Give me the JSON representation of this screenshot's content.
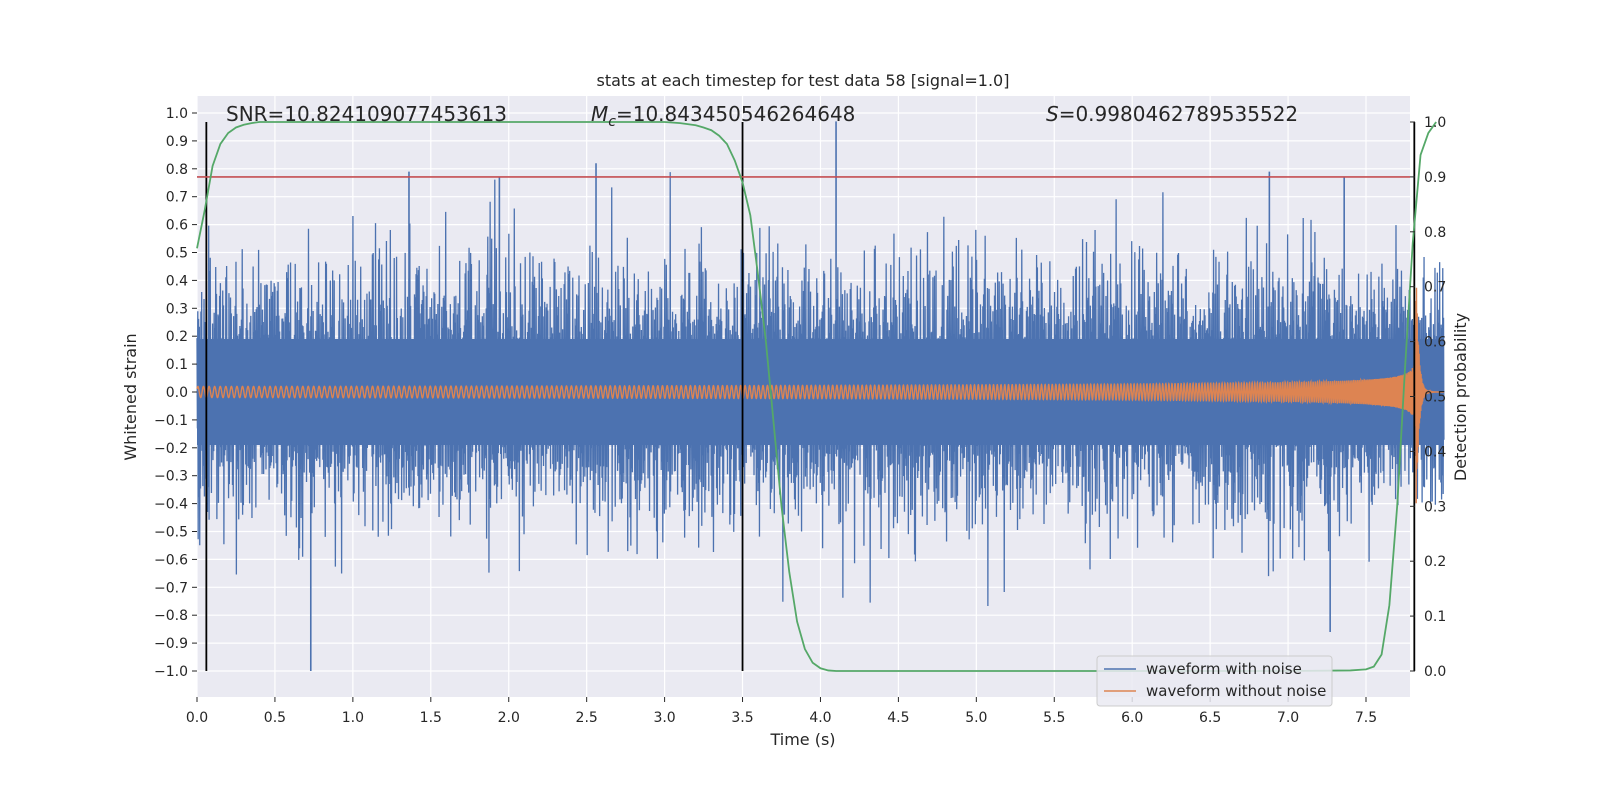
{
  "chart_data": {
    "type": "line",
    "title": "stats at each timestep for test data 58 [signal=1.0]",
    "xlabel": "Time (s)",
    "ylabel": "Whitened strain",
    "y2label": "Detection probability",
    "xlim": [
      0.0,
      8.0
    ],
    "ylim": [
      -1.1,
      1.05
    ],
    "y2lim": [
      -0.0477,
      1.0455
    ],
    "xticks": [
      0.0,
      0.5,
      1.0,
      1.5,
      2.0,
      2.5,
      3.0,
      3.5,
      4.0,
      4.5,
      5.0,
      5.5,
      6.0,
      6.5,
      7.0,
      7.5
    ],
    "xtick_labels": [
      "0.0",
      "0.5",
      "1.0",
      "1.5",
      "2.0",
      "2.5",
      "3.0",
      "3.5",
      "4.0",
      "4.5",
      "5.0",
      "5.5",
      "6.0",
      "6.5",
      "7.0",
      "7.5"
    ],
    "yticks": [
      1.0,
      0.9,
      0.8,
      0.7,
      0.6,
      0.5,
      0.4,
      0.3,
      0.2,
      0.1,
      0.0,
      -0.1,
      -0.2,
      -0.3,
      -0.4,
      -0.5,
      -0.6,
      -0.7,
      -0.8,
      -0.9,
      -1.0
    ],
    "ytick_labels": [
      "1.0",
      "0.9",
      "0.8",
      "0.7",
      "0.6",
      "0.5",
      "0.4",
      "0.3",
      "0.2",
      "0.1",
      "0.0",
      "−0.1",
      "−0.2",
      "−0.3",
      "−0.4",
      "−0.5",
      "−0.6",
      "−0.7",
      "−0.8",
      "−0.9",
      "−1.0"
    ],
    "y2ticks": [
      1.0,
      0.9,
      0.8,
      0.7,
      0.6,
      0.5,
      0.4,
      0.3,
      0.2,
      0.1,
      0.0
    ],
    "y2tick_labels": [
      "1.0",
      "0.9",
      "0.8",
      "0.7",
      "0.6",
      "0.5",
      "0.4",
      "0.3",
      "0.2",
      "0.1",
      "0.0"
    ],
    "grid": true,
    "legend_position": "bottom-right",
    "annotations": {
      "snr": "SNR=10.824109077453613",
      "mc_symbol": "M",
      "mc_subscript": "c",
      "mc_value": "=10.843450546264648",
      "s_symbol": "S",
      "s_value": "=0.9980462789535522"
    },
    "threshold_line": {
      "y": 0.9,
      "axis": "y2",
      "color": "#c44e52"
    },
    "vertical_markers": [
      0.06,
      3.5,
      7.81
    ],
    "series": [
      {
        "name": "waveform with noise",
        "color": "#4c72b0",
        "kind": "noise",
        "typical_amplitude": 0.4,
        "peaks": [
          [
            0.73,
            -1.0
          ],
          [
            1.36,
            0.79
          ],
          [
            1.94,
            0.77
          ],
          [
            2.56,
            0.82
          ],
          [
            4.1,
            0.97
          ],
          [
            6.88,
            0.79
          ],
          [
            7.27,
            -0.86
          ],
          [
            7.36,
            0.77
          ]
        ]
      },
      {
        "name": "waveform without noise",
        "color": "#dd8452",
        "kind": "chirp",
        "merger_time": 7.82,
        "amplitude_start": 0.02,
        "amplitude_peak": 0.48
      },
      {
        "name": "Detection probability",
        "color": "#55a868",
        "axis": "y2",
        "x": [
          0.0,
          0.05,
          0.1,
          0.15,
          0.2,
          0.25,
          0.3,
          0.35,
          0.4,
          0.5,
          0.6,
          1.0,
          2.0,
          3.0,
          3.1,
          3.2,
          3.25,
          3.3,
          3.35,
          3.4,
          3.45,
          3.5,
          3.55,
          3.6,
          3.65,
          3.7,
          3.75,
          3.8,
          3.85,
          3.9,
          3.95,
          4.0,
          4.05,
          4.1,
          4.2,
          5.0,
          6.0,
          7.0,
          7.4,
          7.5,
          7.55,
          7.6,
          7.65,
          7.7,
          7.75,
          7.8,
          7.85,
          7.9,
          7.95
        ],
        "values": [
          0.77,
          0.84,
          0.92,
          0.96,
          0.98,
          0.99,
          0.995,
          0.998,
          1.0,
          1.0,
          1.0,
          1.0,
          1.0,
          1.0,
          0.998,
          0.994,
          0.99,
          0.985,
          0.975,
          0.96,
          0.93,
          0.89,
          0.83,
          0.72,
          0.6,
          0.45,
          0.3,
          0.18,
          0.09,
          0.04,
          0.015,
          0.005,
          0.001,
          0.0,
          0.0,
          0.0,
          0.0,
          0.0,
          0.001,
          0.003,
          0.008,
          0.03,
          0.12,
          0.3,
          0.55,
          0.78,
          0.94,
          0.98,
          1.0
        ]
      }
    ]
  }
}
